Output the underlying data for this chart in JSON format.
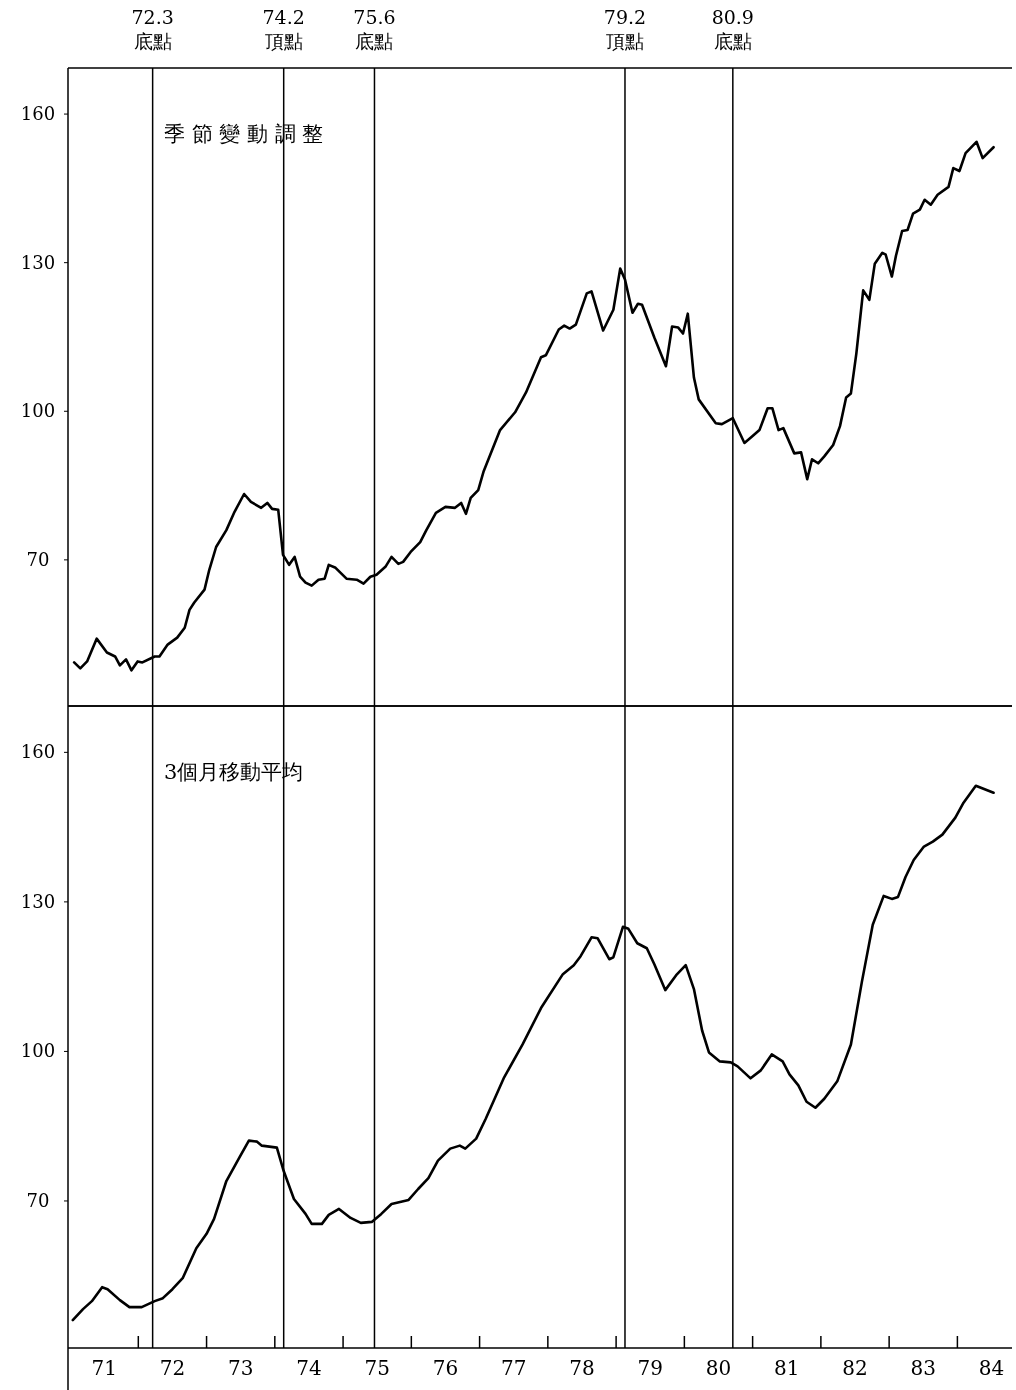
{
  "chart_data": [
    {
      "type": "line",
      "title": "季 節 變 動 調 整",
      "x": [
        71.06,
        71.15,
        71.25,
        71.39,
        71.54,
        71.66,
        71.73,
        71.82,
        71.9,
        71.99,
        72.06,
        72.24,
        72.31,
        72.43,
        72.57,
        72.68,
        72.75,
        72.82,
        72.97,
        73.04,
        73.14,
        73.29,
        73.41,
        73.55,
        73.65,
        73.8,
        73.89,
        73.96,
        74.05,
        74.12,
        74.21,
        74.29,
        74.37,
        74.45,
        74.54,
        74.64,
        74.73,
        74.79,
        74.89,
        75.05,
        75.2,
        75.3,
        75.4,
        75.49,
        75.62,
        75.71,
        75.81,
        75.88,
        75.99,
        76.13,
        76.22,
        76.36,
        76.5,
        76.64,
        76.73,
        76.8,
        76.87,
        76.98,
        77.06,
        77.3,
        77.52,
        77.68,
        77.9,
        77.97,
        78.16,
        78.24,
        78.32,
        78.41,
        78.57,
        78.64,
        78.81,
        78.96,
        79.06,
        79.13,
        79.24,
        79.32,
        79.38,
        79.56,
        79.73,
        79.82,
        79.91,
        79.98,
        80.05,
        80.14,
        80.21,
        80.46,
        80.55,
        80.71,
        80.88,
        81.0,
        81.1,
        81.22,
        81.29,
        81.38,
        81.45,
        81.61,
        81.71,
        81.8,
        81.87,
        81.96,
        82.05,
        82.18,
        82.28,
        82.37,
        82.44,
        82.52,
        82.62,
        82.71,
        82.79,
        82.9,
        82.95,
        83.04,
        83.1,
        83.19,
        83.27,
        83.35,
        83.45,
        83.52,
        83.61,
        83.71,
        83.87,
        83.94,
        84.03,
        84.12,
        84.28,
        84.37,
        84.53
      ],
      "series": [
        {
          "color": "#000000",
          "values": [
            49.3,
            48.1,
            49.5,
            54.1,
            51.3,
            50.5,
            48.7,
            49.9,
            47.7,
            49.5,
            49.3,
            50.5,
            50.5,
            52.9,
            54.3,
            56.3,
            59.9,
            61.4,
            64.0,
            68.0,
            72.6,
            76.0,
            79.7,
            83.3,
            81.7,
            80.5,
            81.5,
            80.3,
            80.1,
            71.0,
            69.0,
            70.6,
            66.6,
            65.4,
            64.8,
            66.0,
            66.2,
            69.0,
            68.4,
            66.2,
            66.0,
            65.2,
            66.6,
            67.0,
            68.6,
            70.6,
            69.2,
            69.6,
            71.6,
            73.6,
            76.0,
            79.5,
            80.7,
            80.5,
            81.5,
            79.3,
            82.5,
            84.1,
            87.9,
            96.2,
            99.8,
            103.8,
            110.9,
            111.3,
            116.5,
            117.3,
            116.7,
            117.5,
            123.8,
            124.2,
            116.3,
            120.5,
            128.8,
            126.6,
            119.9,
            121.7,
            121.5,
            114.9,
            109.1,
            117.1,
            116.9,
            115.7,
            119.7,
            106.8,
            102.4,
            97.6,
            97.4,
            98.6,
            93.6,
            95.0,
            96.2,
            100.6,
            100.6,
            96.2,
            96.6,
            91.5,
            91.7,
            86.3,
            90.3,
            89.5,
            90.9,
            93.2,
            97.0,
            102.8,
            103.6,
            111.7,
            124.4,
            122.5,
            129.8,
            132.0,
            131.6,
            127.2,
            131.4,
            136.4,
            136.6,
            139.9,
            140.7,
            142.7,
            141.7,
            143.7,
            145.3,
            149.1,
            148.5,
            152.1,
            154.4,
            151.1,
            153.3
          ]
        }
      ],
      "xlim": [
        70.97,
        84.8
      ],
      "ylim": [
        40.5,
        169.3
      ],
      "yticks": [
        70,
        100,
        130,
        160
      ],
      "tick_labels": "y",
      "ref_lines": [
        {
          "axis": "x",
          "value": 72.21,
          "label": "72.3 底點"
        },
        {
          "axis": "x",
          "value": 74.13,
          "label": "74.2 頂點"
        },
        {
          "axis": "x",
          "value": 75.46,
          "label": "75.6 底點"
        },
        {
          "axis": "x",
          "value": 79.13,
          "label": "79.2 頂點"
        },
        {
          "axis": "x",
          "value": 80.71,
          "label": "80.9 底點"
        }
      ]
    },
    {
      "type": "line",
      "title": "3個月移動平均",
      "x": [
        71.04,
        71.19,
        71.32,
        71.47,
        71.55,
        71.73,
        71.87,
        72.05,
        72.24,
        72.36,
        72.5,
        72.65,
        72.85,
        73.0,
        73.11,
        73.29,
        73.48,
        73.62,
        73.74,
        73.81,
        74.03,
        74.13,
        74.28,
        74.45,
        74.54,
        74.69,
        74.79,
        74.94,
        75.11,
        75.26,
        75.42,
        75.56,
        75.71,
        75.96,
        76.1,
        76.25,
        76.39,
        76.57,
        76.71,
        76.79,
        76.95,
        77.09,
        77.36,
        77.63,
        77.9,
        78.22,
        78.38,
        78.48,
        78.64,
        78.73,
        78.9,
        78.96,
        79.1,
        79.18,
        79.31,
        79.45,
        79.56,
        79.72,
        79.88,
        80.02,
        80.14,
        80.26,
        80.36,
        80.52,
        80.68,
        80.78,
        80.97,
        81.12,
        81.28,
        81.44,
        81.54,
        81.67,
        81.79,
        81.92,
        82.05,
        82.24,
        82.44,
        82.6,
        82.76,
        82.92,
        83.04,
        83.13,
        83.24,
        83.36,
        83.51,
        83.64,
        83.78,
        83.97,
        84.09,
        84.27,
        84.53
      ],
      "series": [
        {
          "color": "#000000",
          "values": [
            46.1,
            48.3,
            49.9,
            52.7,
            52.3,
            50.1,
            48.7,
            48.7,
            49.9,
            50.5,
            52.3,
            54.5,
            60.5,
            63.4,
            66.4,
            74.0,
            78.7,
            82.1,
            81.9,
            81.1,
            80.7,
            76.0,
            70.4,
            67.4,
            65.4,
            65.4,
            67.2,
            68.4,
            66.6,
            65.6,
            65.8,
            67.4,
            69.4,
            70.2,
            72.4,
            74.6,
            78.1,
            80.5,
            81.1,
            80.5,
            82.5,
            86.5,
            94.8,
            101.4,
            108.7,
            115.5,
            117.3,
            119.1,
            122.9,
            122.7,
            118.5,
            118.9,
            125.0,
            124.6,
            121.7,
            120.7,
            117.5,
            112.3,
            115.3,
            117.3,
            112.5,
            104.2,
            99.8,
            98.0,
            97.8,
            97.0,
            94.6,
            96.2,
            99.4,
            98.0,
            95.4,
            93.2,
            89.9,
            88.7,
            90.5,
            94.0,
            101.4,
            113.9,
            125.4,
            131.2,
            130.6,
            131.0,
            135.0,
            138.4,
            141.1,
            142.1,
            143.5,
            146.9,
            149.9,
            153.3,
            151.9
          ]
        }
      ],
      "xlim": [
        70.97,
        84.8
      ],
      "ylim": [
        40.5,
        169.3
      ],
      "yticks": [
        70,
        100,
        130,
        160
      ],
      "xticks": [
        {
          "value": 71.5,
          "label": "71"
        },
        {
          "value": 72.5,
          "label": "72"
        },
        {
          "value": 73.5,
          "label": "73"
        },
        {
          "value": 74.5,
          "label": "74"
        },
        {
          "value": 75.5,
          "label": "75"
        },
        {
          "value": 76.5,
          "label": "76"
        },
        {
          "value": 77.5,
          "label": "77"
        },
        {
          "value": 78.5,
          "label": "78"
        },
        {
          "value": 79.5,
          "label": "79"
        },
        {
          "value": 80.5,
          "label": "80"
        },
        {
          "value": 81.5,
          "label": "81"
        },
        {
          "value": 82.5,
          "label": "82"
        },
        {
          "value": 83.5,
          "label": "83"
        },
        {
          "value": 84.5,
          "label": "84"
        },
        {
          "value": 72,
          "label": null
        },
        {
          "value": 73,
          "label": null
        },
        {
          "value": 74,
          "label": null
        },
        {
          "value": 75,
          "label": null
        },
        {
          "value": 76,
          "label": null
        },
        {
          "value": 77,
          "label": null
        },
        {
          "value": 78,
          "label": null
        },
        {
          "value": 79,
          "label": null
        },
        {
          "value": 80,
          "label": null
        },
        {
          "value": 81,
          "label": null
        },
        {
          "value": 82,
          "label": null
        },
        {
          "value": 83,
          "label": null
        },
        {
          "value": 84,
          "label": null
        }
      ],
      "ref_lines": [
        {
          "axis": "x",
          "value": 72.21
        },
        {
          "axis": "x",
          "value": 74.13
        },
        {
          "axis": "x",
          "value": 75.46
        },
        {
          "axis": "x",
          "value": 79.13
        },
        {
          "axis": "x",
          "value": 80.71
        }
      ]
    }
  ]
}
